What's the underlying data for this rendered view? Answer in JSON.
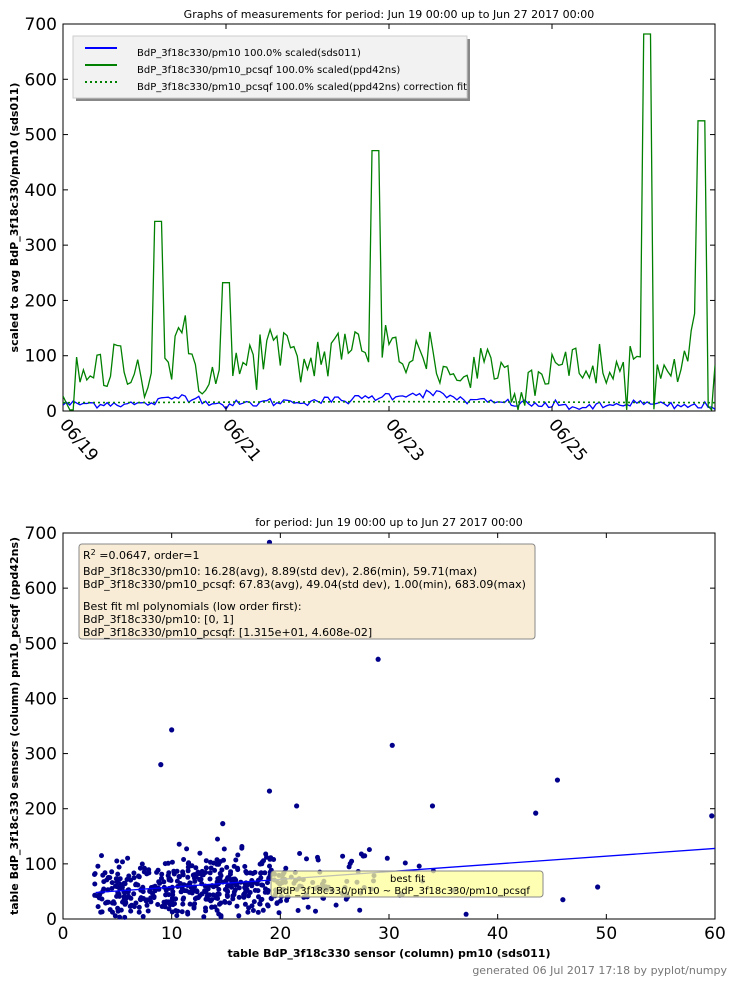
{
  "footer": "generated 06 Jul 2017 17:18 by pyplot/numpy",
  "chart_data": [
    {
      "type": "line",
      "title": "Graphs of measurements for period: Jun 19 00:00 up to Jun 27 2017 00:00",
      "xlabel": "",
      "ylabel": "scaled to avg BdP_3f18c330/pm10 (sds011)",
      "x_range": [
        "2017-06-19 00:00",
        "2017-06-27 00:00"
      ],
      "x_ticks": [
        "06/19",
        "06/21",
        "06/23",
        "06/25"
      ],
      "ylim": [
        0,
        700
      ],
      "y_ticks": [
        0,
        100,
        200,
        300,
        400,
        500,
        600,
        700
      ],
      "grid": false,
      "legend_position": "top-left",
      "series": [
        {
          "name": "BdP_3f18c330/pm10  100.0% scaled(sds011)",
          "color": "#0000ff",
          "style": "solid",
          "x": [
            "2017-06-19 00:00",
            "2017-06-19 12:00",
            "2017-06-20 00:00",
            "2017-06-20 12:00",
            "2017-06-21 00:00",
            "2017-06-21 12:00",
            "2017-06-22 00:00",
            "2017-06-22 12:00",
            "2017-06-23 00:00",
            "2017-06-23 12:00",
            "2017-06-24 00:00",
            "2017-06-24 12:00",
            "2017-06-25 00:00",
            "2017-06-25 12:00",
            "2017-06-26 00:00",
            "2017-06-26 12:00",
            "2017-06-27 00:00"
          ],
          "values": [
            12,
            14,
            12,
            28,
            10,
            16,
            18,
            20,
            28,
            33,
            18,
            14,
            10,
            6,
            15,
            8,
            9
          ]
        },
        {
          "name": "BdP_3f18c330/pm10_pcsqf  100.0% scaled(ppd42ns)",
          "color": "#008000",
          "style": "solid",
          "x": [
            "2017-06-19 00:00",
            "2017-06-19 06:00",
            "2017-06-19 12:00",
            "2017-06-19 18:00",
            "2017-06-20 00:00",
            "2017-06-20 04:00",
            "2017-06-20 06:00",
            "2017-06-20 12:00",
            "2017-06-20 18:00",
            "2017-06-21 00:00",
            "2017-06-21 06:00",
            "2017-06-21 12:00",
            "2017-06-21 18:00",
            "2017-06-22 00:00",
            "2017-06-22 06:00",
            "2017-06-22 12:00",
            "2017-06-22 18:00",
            "2017-06-22 20:00",
            "2017-06-23 00:00",
            "2017-06-23 06:00",
            "2017-06-23 12:00",
            "2017-06-23 18:00",
            "2017-06-24 00:00",
            "2017-06-24 06:00",
            "2017-06-24 12:00",
            "2017-06-24 18:00",
            "2017-06-25 00:00",
            "2017-06-25 06:00",
            "2017-06-25 12:00",
            "2017-06-25 18:00",
            "2017-06-26 00:00",
            "2017-06-26 04:00",
            "2017-06-26 12:00",
            "2017-06-26 18:00",
            "2017-06-26 20:00",
            "2017-06-27 00:00"
          ],
          "values": [
            20,
            45,
            70,
            110,
            60,
            343,
            90,
            120,
            60,
            232,
            85,
            120,
            95,
            80,
            110,
            130,
            75,
            471,
            150,
            90,
            110,
            60,
            70,
            100,
            55,
            60,
            90,
            70,
            80,
            60,
            90,
            682,
            80,
            150,
            525,
            20
          ]
        },
        {
          "name": "BdP_3f18c330/pm10_pcsqf  100.0% scaled(ppd42ns) correction fit",
          "color": "#008000",
          "style": "dotted",
          "x": [
            "2017-06-19 00:00",
            "2017-06-21 00:00",
            "2017-06-23 00:00",
            "2017-06-25 00:00",
            "2017-06-27 00:00"
          ],
          "values": [
            15,
            16,
            17,
            16,
            15
          ]
        }
      ]
    },
    {
      "type": "scatter",
      "title": "for period: Jun 19 00:00 up to Jun 27 2017 00:00",
      "xlabel": "table BdP_3f18c330 sensor (column) pm10 (sds011)",
      "ylabel": "table BdP_3f18c330 sensors (column) pm10_pcsqf (ppd42ns)",
      "xlim": [
        0,
        60
      ],
      "ylim": [
        0,
        700
      ],
      "x_ticks": [
        0,
        10,
        20,
        30,
        40,
        50,
        60
      ],
      "y_ticks": [
        0,
        100,
        200,
        300,
        400,
        500,
        600,
        700
      ],
      "grid": false,
      "point_color": "#00008b",
      "fit_color": "#0000ff",
      "fit": {
        "label": "best fit",
        "x": [
          3,
          60
        ],
        "y": [
          48,
          128
        ]
      },
      "fit_label_box": {
        "line1": "best fit",
        "line2": "BdP_3f18c330/pm10 ~ BdP_3f18c330/pm10_pcsqf"
      },
      "stats_box": {
        "r2_label": "R",
        "r2_sup": "2",
        "r2_rest": " =0.0647, order=1",
        "line2": "BdP_3f18c330/pm10: 16.28(avg),  8.89(std dev),  2.86(min), 59.71(max)",
        "line3": "BdP_3f18c330/pm10_pcsqf: 67.83(avg), 49.04(std dev),  1.00(min), 683.09(max)",
        "line4": "Best fit ml polynomials (low order first):",
        "line5": "BdP_3f18c330/pm10: [0, 1]",
        "line6": "BdP_3f18c330/pm10_pcsqf: [1.315e+01, 4.608e-02]"
      },
      "outliers": [
        [
          19,
          683
        ],
        [
          29,
          471
        ],
        [
          30.3,
          315
        ],
        [
          10,
          343
        ],
        [
          9,
          280
        ],
        [
          45.5,
          252
        ],
        [
          19,
          232
        ],
        [
          34,
          205
        ],
        [
          21.5,
          205
        ],
        [
          43.5,
          192
        ],
        [
          59.7,
          187
        ],
        [
          14.7,
          173
        ],
        [
          49.2,
          58
        ],
        [
          46,
          35
        ]
      ],
      "cluster": {
        "n": 520,
        "x_center": 13.5,
        "x_spread": 6,
        "y_center": 60,
        "y_spread": 28,
        "x_min": 2.9,
        "x_max": 42
      }
    }
  ]
}
